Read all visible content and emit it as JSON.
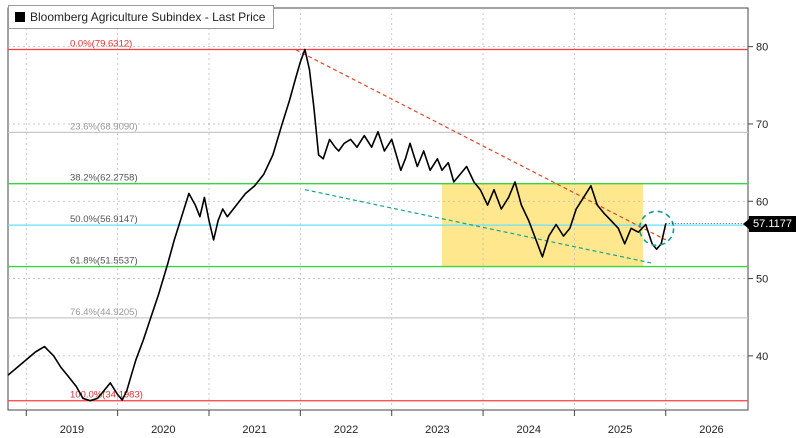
{
  "legend": {
    "label": "Bloomberg Agriculture Subindex - Last Price",
    "marker_color": "#000000"
  },
  "last_value_label": "57.1177",
  "colors": {
    "price": "#000000",
    "fib_0_and_100": "#ff3b3b",
    "fib_38_61": "#39d639",
    "fib_50": "#66e0ff",
    "fib_other": "#c8c8c8",
    "upper_trend": "#e0452e",
    "lower_trend": "#19a38c",
    "zone_fill": "#ffe37a",
    "circle": "#1a9c8c"
  },
  "chart_data": {
    "type": "line",
    "title": "Bloomberg Agriculture Subindex - Last Price",
    "xlabel": "",
    "ylabel": "",
    "xlim": [
      2018.8,
      2026.9
    ],
    "ylim": [
      33.0,
      85.0
    ],
    "x_tick_labels": [
      "2019",
      "2020",
      "2021",
      "2022",
      "2023",
      "2024",
      "2025",
      "2026"
    ],
    "y_ticks": [
      40,
      50,
      60,
      70,
      80
    ],
    "grid": true,
    "axis_side": "right",
    "series": [
      {
        "name": "Bloomberg Agriculture Subindex - Last Price",
        "x": [
          2018.8,
          2018.9,
          2019.0,
          2019.1,
          2019.2,
          2019.3,
          2019.38,
          2019.45,
          2019.55,
          2019.62,
          2019.7,
          2019.78,
          2019.85,
          2019.92,
          2020.0,
          2020.05,
          2020.1,
          2020.15,
          2020.2,
          2020.28,
          2020.35,
          2020.45,
          2020.55,
          2020.62,
          2020.7,
          2020.78,
          2020.85,
          2020.9,
          2020.95,
          2021.0,
          2021.05,
          2021.1,
          2021.15,
          2021.2,
          2021.3,
          2021.4,
          2021.5,
          2021.6,
          2021.7,
          2021.8,
          2021.88,
          2021.95,
          2022.0,
          2022.05,
          2022.1,
          2022.15,
          2022.2,
          2022.25,
          2022.32,
          2022.38,
          2022.42,
          2022.48,
          2022.55,
          2022.62,
          2022.7,
          2022.78,
          2022.85,
          2022.92,
          2023.0,
          2023.05,
          2023.1,
          2023.15,
          2023.2,
          2023.28,
          2023.35,
          2023.42,
          2023.5,
          2023.55,
          2023.62,
          2023.68,
          2023.75,
          2023.82,
          2023.9,
          2023.97,
          2024.05,
          2024.12,
          2024.2,
          2024.28,
          2024.35,
          2024.42,
          2024.5,
          2024.58,
          2024.65,
          2024.72,
          2024.8,
          2024.88,
          2024.95,
          2025.02,
          2025.1,
          2025.18,
          2025.25,
          2025.32,
          2025.4,
          2025.48,
          2025.55,
          2025.62,
          2025.7,
          2025.78,
          2025.85,
          2025.9,
          2025.95,
          2026.0
        ],
        "y": [
          37.5,
          38.5,
          39.5,
          40.5,
          41.2,
          40.0,
          38.5,
          37.5,
          36.0,
          34.5,
          34.2,
          34.5,
          35.5,
          36.5,
          35.0,
          34.3,
          35.5,
          37.5,
          39.5,
          42.0,
          44.5,
          48.0,
          52.0,
          55.0,
          58.0,
          61.0,
          59.5,
          58.0,
          60.5,
          57.5,
          55.0,
          57.5,
          59.0,
          58.0,
          59.5,
          61.0,
          62.0,
          63.5,
          66.0,
          70.0,
          73.0,
          76.0,
          78.0,
          79.63,
          77.0,
          72.0,
          66.0,
          65.5,
          68.0,
          67.0,
          66.5,
          67.5,
          68.0,
          67.0,
          68.5,
          67.0,
          69.0,
          66.5,
          68.0,
          66.0,
          64.0,
          65.5,
          67.5,
          64.5,
          66.5,
          64.0,
          65.5,
          64.0,
          65.0,
          62.5,
          63.5,
          64.5,
          62.5,
          61.5,
          59.5,
          61.5,
          59.0,
          60.5,
          62.5,
          59.5,
          57.5,
          55.0,
          52.8,
          55.5,
          57.0,
          55.5,
          56.5,
          59.0,
          60.5,
          62.0,
          59.5,
          58.5,
          57.5,
          56.5,
          54.5,
          56.5,
          56.0,
          57.0,
          54.5,
          53.8,
          54.5,
          57.12
        ]
      }
    ],
    "fibonacci_levels": [
      {
        "label": "0.0%(79.6312)",
        "value": 79.6312
      },
      {
        "label": "23.6%(68.9090)",
        "value": 68.909
      },
      {
        "label": "38.2%(62.2758)",
        "value": 62.2758
      },
      {
        "label": "50.0%(56.9147)",
        "value": 56.9147
      },
      {
        "label": "61.8%(51.5537)",
        "value": 51.5537
      },
      {
        "label": "76.4%(44.9205)",
        "value": 44.9205
      },
      {
        "label": "100.0%(34.1983)",
        "value": 34.1983
      }
    ],
    "trendlines": [
      {
        "x": [
          2021.95,
          2026.0
        ],
        "y": [
          79.6,
          55.0
        ]
      },
      {
        "x": [
          2022.05,
          2025.85
        ],
        "y": [
          61.5,
          52.0
        ]
      }
    ],
    "highlight_zone": {
      "x": [
        2023.55,
        2025.75
      ],
      "y": [
        51.55,
        62.28
      ]
    },
    "annotation_circle": {
      "x": 2025.9,
      "y": 56.5
    }
  }
}
